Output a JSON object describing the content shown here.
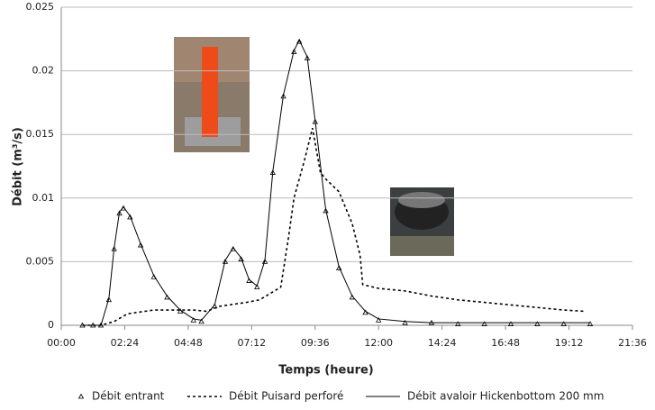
{
  "chart_data": {
    "type": "line",
    "xlabel": "Temps (heure)",
    "ylabel": "Débit (m³/s)",
    "xlim": [
      0,
      21.6
    ],
    "xticks": [
      {
        "value": 0,
        "label": "00:00"
      },
      {
        "value": 2.4,
        "label": "02:24"
      },
      {
        "value": 4.8,
        "label": "04:48"
      },
      {
        "value": 7.2,
        "label": "07:12"
      },
      {
        "value": 9.6,
        "label": "09:36"
      },
      {
        "value": 12,
        "label": "12:00"
      },
      {
        "value": 14.4,
        "label": "14:24"
      },
      {
        "value": 16.8,
        "label": "16:48"
      },
      {
        "value": 19.2,
        "label": "19:12"
      },
      {
        "value": 21.6,
        "label": "21:36"
      }
    ],
    "ylim": [
      0,
      0.025
    ],
    "yticks": [
      0,
      0.005,
      0.01,
      0.015,
      0.02,
      0.025
    ],
    "grid": true,
    "legend": "bottom",
    "series": [
      {
        "name": "Débit entrant",
        "color": "#000000",
        "style": "markers",
        "x": [
          0.8,
          1.2,
          1.5,
          1.8,
          2.0,
          2.2,
          2.35,
          2.6,
          3.0,
          3.5,
          4.0,
          4.5,
          5.0,
          5.3,
          5.8,
          6.2,
          6.5,
          6.8,
          7.1,
          7.4,
          7.7,
          8.0,
          8.4,
          8.8,
          9.0,
          9.3,
          9.6,
          10.0,
          10.5,
          11.0,
          11.5,
          12.0,
          13.0,
          14.0,
          15.0,
          16.0,
          17.0,
          18.0,
          19.0,
          20.0
        ],
        "values": [
          0,
          0,
          0,
          0.002,
          0.006,
          0.0088,
          0.0092,
          0.0085,
          0.0063,
          0.0038,
          0.0022,
          0.0011,
          0.0004,
          0.0003,
          0.0015,
          0.005,
          0.006,
          0.0052,
          0.0035,
          0.003,
          0.005,
          0.012,
          0.018,
          0.0215,
          0.0223,
          0.021,
          0.016,
          0.009,
          0.0045,
          0.0022,
          0.001,
          0.0004,
          0.0002,
          0.0002,
          0.0001,
          0.0001,
          0.0001,
          0.0001,
          0.0001,
          0.0001
        ]
      },
      {
        "name": "Débit Puisard perforé",
        "color": "#000000",
        "style": "dashed",
        "x": [
          0.8,
          1.5,
          2.0,
          2.5,
          3.5,
          5.0,
          5.5,
          6.0,
          7.0,
          7.5,
          8.3,
          8.6,
          8.8,
          9.2,
          9.5,
          9.8,
          10.0,
          10.5,
          11.0,
          11.3,
          11.4,
          12.0,
          13.0,
          14.0,
          15.0,
          16.0,
          17.0,
          18.0,
          19.0,
          19.8
        ],
        "values": [
          0,
          0,
          0.0003,
          0.0009,
          0.0012,
          0.0012,
          0.0011,
          0.0015,
          0.0018,
          0.002,
          0.003,
          0.007,
          0.01,
          0.013,
          0.0155,
          0.012,
          0.0115,
          0.0105,
          0.008,
          0.0055,
          0.0032,
          0.0029,
          0.0027,
          0.0023,
          0.002,
          0.0018,
          0.0016,
          0.0014,
          0.0012,
          0.0011
        ]
      },
      {
        "name": "Débit avaloir Hickenbottom 200 mm",
        "color": "#000000",
        "style": "solid",
        "x": [
          0.8,
          1.2,
          1.5,
          1.8,
          2.0,
          2.2,
          2.35,
          2.6,
          3.0,
          3.5,
          4.0,
          4.5,
          5.0,
          5.3,
          5.8,
          6.2,
          6.5,
          6.8,
          7.1,
          7.4,
          7.7,
          8.0,
          8.4,
          8.8,
          9.0,
          9.3,
          9.6,
          10.0,
          10.5,
          11.0,
          11.5,
          12.0,
          13.0,
          14.0,
          15.0,
          16.0,
          17.0,
          18.0,
          19.0,
          20.0
        ],
        "values": [
          0,
          0,
          0,
          0.0021,
          0.0061,
          0.0089,
          0.0093,
          0.0086,
          0.0064,
          0.0039,
          0.0023,
          0.0012,
          0.0005,
          0.0004,
          0.0016,
          0.0051,
          0.0061,
          0.0053,
          0.0036,
          0.0031,
          0.0051,
          0.0121,
          0.0181,
          0.0216,
          0.0224,
          0.0211,
          0.0161,
          0.0091,
          0.0046,
          0.0023,
          0.0011,
          0.0005,
          0.0003,
          0.0002,
          0.0002,
          0.0002,
          0.0002,
          0.0002,
          0.0002,
          0.0002
        ]
      }
    ]
  }
}
